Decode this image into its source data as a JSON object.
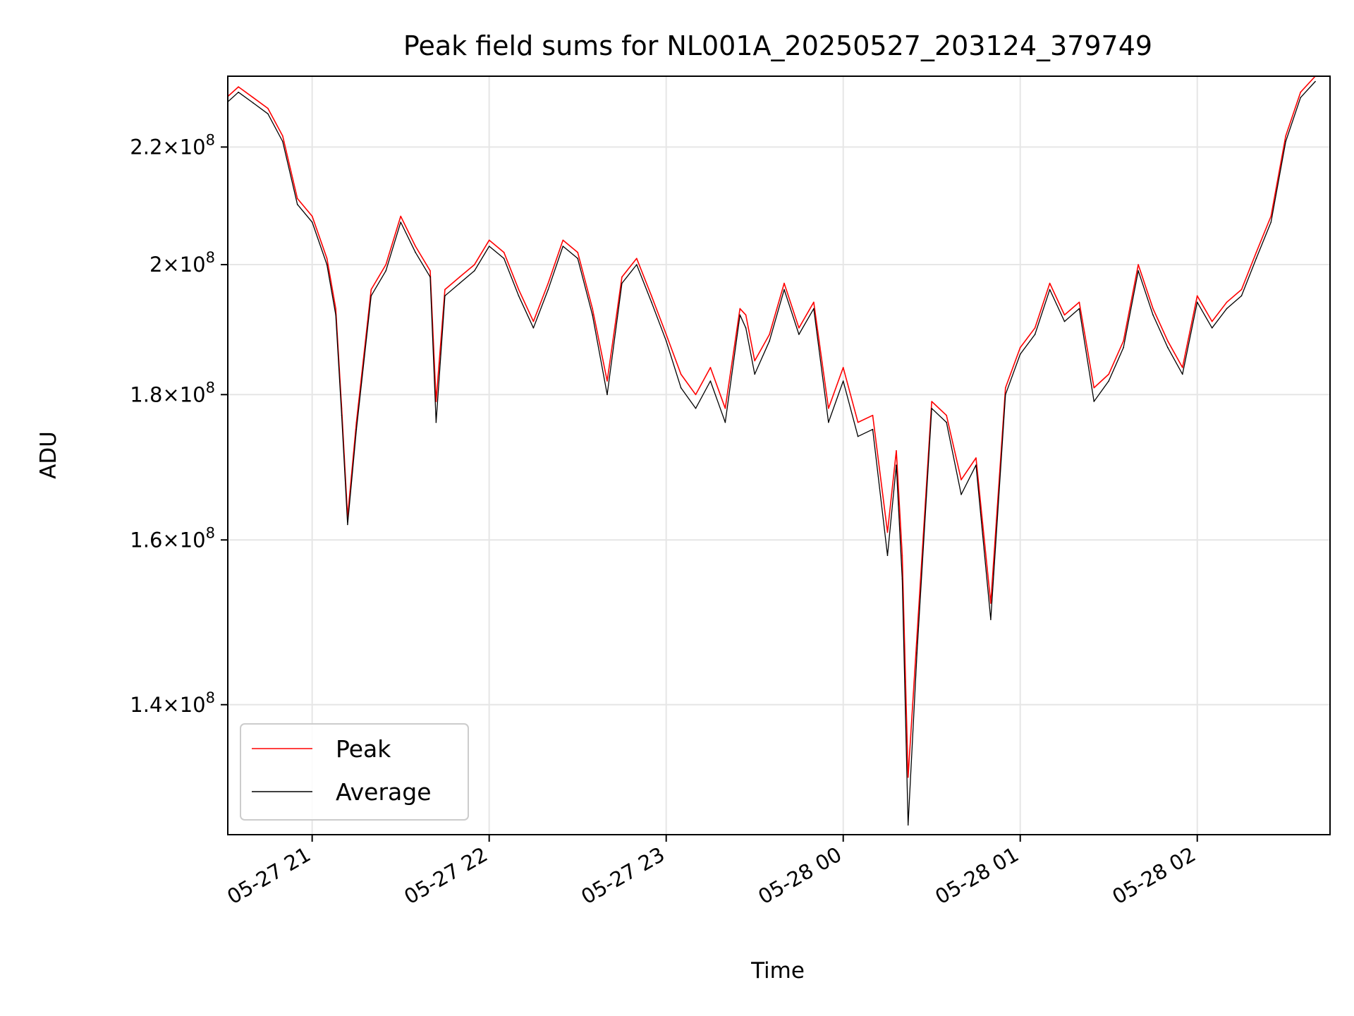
{
  "chart_data": {
    "type": "line",
    "title": "Peak field sums for NL001A_20250527_203124_379749",
    "xlabel": "Time",
    "ylabel": "ADU",
    "yscale": "log",
    "xlim": [
      "2025-05-27 20:31:24",
      "2025-05-28 02:45:00"
    ],
    "ylim": [
      126000000,
      233000000
    ],
    "grid": true,
    "legend_position": "lower-left",
    "xticks": [
      {
        "value": "2025-05-27 21:00",
        "label": "05-27 21"
      },
      {
        "value": "2025-05-27 22:00",
        "label": "05-27 22"
      },
      {
        "value": "2025-05-27 23:00",
        "label": "05-27 23"
      },
      {
        "value": "2025-05-28 00:00",
        "label": "05-28 00"
      },
      {
        "value": "2025-05-28 01:00",
        "label": "05-28 01"
      },
      {
        "value": "2025-05-28 02:00",
        "label": "05-28 02"
      }
    ],
    "yticks": [
      {
        "value": 140000000,
        "mantissa": "1.4"
      },
      {
        "value": 160000000,
        "mantissa": "1.6"
      },
      {
        "value": 180000000,
        "mantissa": "1.8"
      },
      {
        "value": 200000000,
        "mantissa": "2"
      },
      {
        "value": 220000000,
        "mantissa": "2.2"
      }
    ],
    "ytick_format": {
      "times": "×",
      "base": "10",
      "exponent": "8"
    },
    "series": [
      {
        "name": "Peak",
        "color": "#ff0000",
        "x": [
          "2025-05-27 20:31",
          "2025-05-27 20:35",
          "2025-05-27 20:40",
          "2025-05-27 20:45",
          "2025-05-27 20:50",
          "2025-05-27 20:55",
          "2025-05-27 21:00",
          "2025-05-27 21:05",
          "2025-05-27 21:08",
          "2025-05-27 21:10",
          "2025-05-27 21:12",
          "2025-05-27 21:15",
          "2025-05-27 21:20",
          "2025-05-27 21:25",
          "2025-05-27 21:30",
          "2025-05-27 21:35",
          "2025-05-27 21:40",
          "2025-05-27 21:42",
          "2025-05-27 21:45",
          "2025-05-27 21:50",
          "2025-05-27 21:55",
          "2025-05-27 22:00",
          "2025-05-27 22:05",
          "2025-05-27 22:10",
          "2025-05-27 22:15",
          "2025-05-27 22:20",
          "2025-05-27 22:25",
          "2025-05-27 22:30",
          "2025-05-27 22:35",
          "2025-05-27 22:40",
          "2025-05-27 22:45",
          "2025-05-27 22:50",
          "2025-05-27 22:55",
          "2025-05-27 23:00",
          "2025-05-27 23:05",
          "2025-05-27 23:10",
          "2025-05-27 23:15",
          "2025-05-27 23:20",
          "2025-05-27 23:25",
          "2025-05-27 23:27",
          "2025-05-27 23:30",
          "2025-05-27 23:35",
          "2025-05-27 23:40",
          "2025-05-27 23:45",
          "2025-05-27 23:50",
          "2025-05-27 23:55",
          "2025-05-28 00:00",
          "2025-05-28 00:05",
          "2025-05-28 00:10",
          "2025-05-28 00:15",
          "2025-05-28 00:18",
          "2025-05-28 00:20",
          "2025-05-28 00:22",
          "2025-05-28 00:25",
          "2025-05-28 00:30",
          "2025-05-28 00:35",
          "2025-05-28 00:40",
          "2025-05-28 00:45",
          "2025-05-28 00:50",
          "2025-05-28 00:55",
          "2025-05-28 01:00",
          "2025-05-28 01:05",
          "2025-05-28 01:10",
          "2025-05-28 01:15",
          "2025-05-28 01:20",
          "2025-05-28 01:25",
          "2025-05-28 01:30",
          "2025-05-28 01:35",
          "2025-05-28 01:40",
          "2025-05-28 01:45",
          "2025-05-28 01:50",
          "2025-05-28 01:55",
          "2025-05-28 02:00",
          "2025-05-28 02:05",
          "2025-05-28 02:10",
          "2025-05-28 02:15",
          "2025-05-28 02:20",
          "2025-05-28 02:25",
          "2025-05-28 02:30",
          "2025-05-28 02:35",
          "2025-05-28 02:40"
        ],
        "values": [
          229000000,
          231000000,
          229000000,
          227000000,
          222000000,
          211000000,
          208000000,
          201000000,
          193000000,
          178000000,
          163000000,
          176000000,
          196000000,
          200000000,
          208000000,
          203000000,
          199000000,
          179000000,
          196000000,
          198000000,
          200000000,
          204000000,
          202000000,
          196000000,
          191000000,
          197000000,
          204000000,
          202000000,
          193000000,
          182000000,
          198000000,
          201000000,
          195000000,
          189000000,
          183000000,
          180000000,
          184000000,
          178000000,
          193000000,
          192000000,
          185000000,
          189000000,
          197000000,
          190000000,
          194000000,
          178000000,
          184000000,
          176000000,
          177000000,
          161000000,
          172000000,
          158000000,
          132000000,
          148000000,
          179000000,
          177000000,
          168000000,
          171000000,
          152000000,
          181000000,
          187000000,
          190000000,
          197000000,
          192000000,
          194000000,
          181000000,
          183000000,
          188000000,
          200000000,
          193000000,
          188000000,
          184000000,
          195000000,
          191000000,
          194000000,
          196000000,
          202000000,
          208000000,
          222000000,
          230000000,
          233000000
        ]
      },
      {
        "name": "Average",
        "color": "#000000",
        "x": [
          "2025-05-27 20:31",
          "2025-05-27 20:35",
          "2025-05-27 20:40",
          "2025-05-27 20:45",
          "2025-05-27 20:50",
          "2025-05-27 20:55",
          "2025-05-27 21:00",
          "2025-05-27 21:05",
          "2025-05-27 21:08",
          "2025-05-27 21:10",
          "2025-05-27 21:12",
          "2025-05-27 21:15",
          "2025-05-27 21:20",
          "2025-05-27 21:25",
          "2025-05-27 21:30",
          "2025-05-27 21:35",
          "2025-05-27 21:40",
          "2025-05-27 21:42",
          "2025-05-27 21:45",
          "2025-05-27 21:50",
          "2025-05-27 21:55",
          "2025-05-27 22:00",
          "2025-05-27 22:05",
          "2025-05-27 22:10",
          "2025-05-27 22:15",
          "2025-05-27 22:20",
          "2025-05-27 22:25",
          "2025-05-27 22:30",
          "2025-05-27 22:35",
          "2025-05-27 22:40",
          "2025-05-27 22:45",
          "2025-05-27 22:50",
          "2025-05-27 22:55",
          "2025-05-27 23:00",
          "2025-05-27 23:05",
          "2025-05-27 23:10",
          "2025-05-27 23:15",
          "2025-05-27 23:20",
          "2025-05-27 23:25",
          "2025-05-27 23:27",
          "2025-05-27 23:30",
          "2025-05-27 23:35",
          "2025-05-27 23:40",
          "2025-05-27 23:45",
          "2025-05-27 23:50",
          "2025-05-27 23:55",
          "2025-05-28 00:00",
          "2025-05-28 00:05",
          "2025-05-28 00:10",
          "2025-05-28 00:15",
          "2025-05-28 00:18",
          "2025-05-28 00:20",
          "2025-05-28 00:22",
          "2025-05-28 00:25",
          "2025-05-28 00:30",
          "2025-05-28 00:35",
          "2025-05-28 00:40",
          "2025-05-28 00:45",
          "2025-05-28 00:50",
          "2025-05-28 00:55",
          "2025-05-28 01:00",
          "2025-05-28 01:05",
          "2025-05-28 01:10",
          "2025-05-28 01:15",
          "2025-05-28 01:20",
          "2025-05-28 01:25",
          "2025-05-28 01:30",
          "2025-05-28 01:35",
          "2025-05-28 01:40",
          "2025-05-28 01:45",
          "2025-05-28 01:50",
          "2025-05-28 01:55",
          "2025-05-28 02:00",
          "2025-05-28 02:05",
          "2025-05-28 02:10",
          "2025-05-28 02:15",
          "2025-05-28 02:20",
          "2025-05-28 02:25",
          "2025-05-28 02:30",
          "2025-05-28 02:35",
          "2025-05-28 02:40"
        ],
        "values": [
          228000000,
          230000000,
          228000000,
          226000000,
          221000000,
          210000000,
          207000000,
          200000000,
          192000000,
          177000000,
          162000000,
          175000000,
          195000000,
          199000000,
          207000000,
          202000000,
          198000000,
          176000000,
          195000000,
          197000000,
          199000000,
          203000000,
          201000000,
          195000000,
          190000000,
          196000000,
          203000000,
          201000000,
          192000000,
          180000000,
          197000000,
          200000000,
          194000000,
          188000000,
          181000000,
          178000000,
          182000000,
          176000000,
          192000000,
          190000000,
          183000000,
          188000000,
          196000000,
          189000000,
          193000000,
          176000000,
          182000000,
          174000000,
          175000000,
          158000000,
          170000000,
          155000000,
          127000000,
          146000000,
          178000000,
          176000000,
          166000000,
          170000000,
          150000000,
          180000000,
          186000000,
          189000000,
          196000000,
          191000000,
          193000000,
          179000000,
          182000000,
          187000000,
          199000000,
          192000000,
          187000000,
          183000000,
          194000000,
          190000000,
          193000000,
          195000000,
          201000000,
          207000000,
          221000000,
          229000000,
          232000000
        ]
      }
    ]
  }
}
